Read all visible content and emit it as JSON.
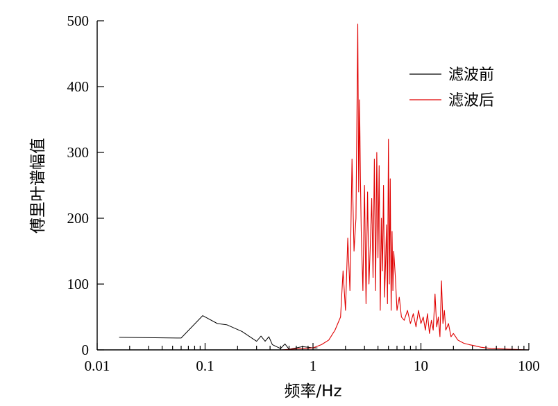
{
  "chart_data": {
    "type": "line",
    "xlabel": "频率/Hz",
    "ylabel": "傅里叶谱幅值",
    "xscale": "log",
    "xlim": [
      0.01,
      100
    ],
    "ylim": [
      0,
      500
    ],
    "x_ticks": [
      "0.01",
      "0.1",
      "1",
      "10",
      "100"
    ],
    "y_ticks": [
      "0",
      "100",
      "200",
      "300",
      "400",
      "500"
    ],
    "legend_position": "top-right",
    "series": [
      {
        "name": "滤波前",
        "color": "#000000",
        "x": [
          0.016,
          0.06,
          0.095,
          0.13,
          0.16,
          0.22,
          0.3,
          0.33,
          0.36,
          0.39,
          0.42,
          0.5,
          0.55,
          0.6,
          0.7,
          0.8,
          0.9,
          1.0,
          1.1
        ],
        "y": [
          19,
          18,
          52,
          40,
          38,
          28,
          13,
          21,
          13,
          20,
          8,
          2,
          9,
          1,
          3,
          5,
          4,
          3,
          3
        ]
      },
      {
        "name": "滤波后",
        "color": "#e00000",
        "x": [
          0.016,
          0.5,
          1.0,
          1.2,
          1.4,
          1.6,
          1.8,
          1.9,
          2.0,
          2.1,
          2.2,
          2.3,
          2.4,
          2.5,
          2.6,
          2.65,
          2.7,
          2.75,
          2.8,
          2.9,
          3.0,
          3.1,
          3.2,
          3.3,
          3.4,
          3.5,
          3.6,
          3.7,
          3.8,
          3.9,
          4.0,
          4.1,
          4.2,
          4.3,
          4.4,
          4.5,
          4.6,
          4.7,
          4.8,
          4.9,
          5.0,
          5.1,
          5.2,
          5.3,
          5.4,
          5.5,
          5.6,
          5.8,
          6.0,
          6.3,
          6.6,
          7.0,
          7.5,
          8.0,
          8.5,
          9.0,
          9.5,
          10.0,
          10.5,
          11.0,
          11.5,
          12.0,
          12.5,
          13.0,
          13.5,
          14.0,
          14.5,
          15.0,
          15.5,
          16.0,
          16.5,
          17.0,
          18.0,
          19.0,
          20.0,
          22.0,
          25.0,
          28.0,
          32.0,
          36.0,
          40.0,
          45.0,
          100.0
        ],
        "y": [
          0,
          0,
          3,
          8,
          15,
          30,
          50,
          120,
          60,
          170,
          90,
          290,
          150,
          200,
          495,
          240,
          380,
          260,
          180,
          90,
          250,
          70,
          240,
          100,
          160,
          230,
          110,
          290,
          90,
          300,
          140,
          280,
          60,
          200,
          120,
          250,
          80,
          130,
          190,
          70,
          320,
          100,
          260,
          60,
          180,
          90,
          150,
          110,
          60,
          80,
          50,
          45,
          60,
          40,
          55,
          35,
          60,
          40,
          50,
          30,
          55,
          25,
          45,
          30,
          85,
          35,
          50,
          20,
          105,
          40,
          60,
          30,
          40,
          20,
          25,
          15,
          10,
          8,
          6,
          4,
          3,
          2,
          0
        ]
      }
    ]
  }
}
